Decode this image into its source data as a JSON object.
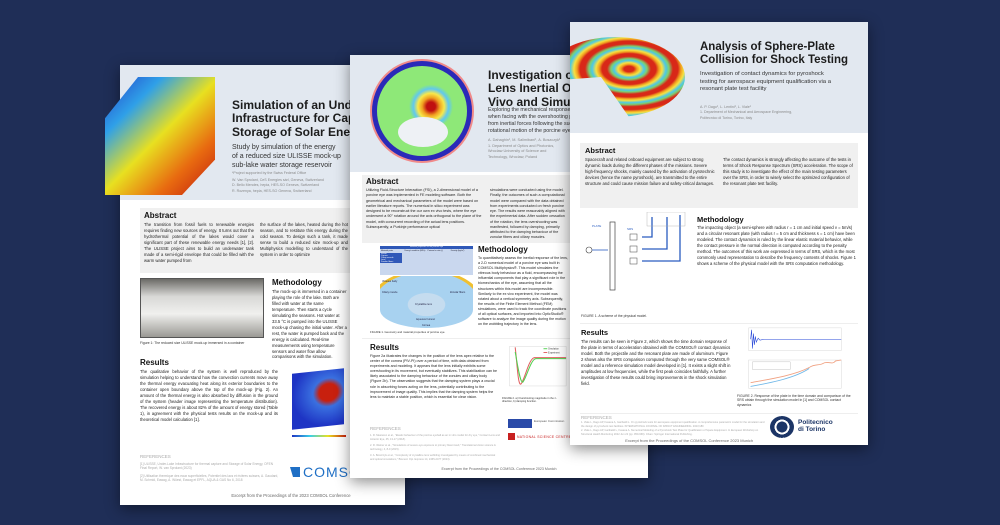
{
  "colors": {
    "background": "#1f2e57",
    "header": "#e2e8f0",
    "abstract_box": "#f0f0f0",
    "comsol_blue": "#1f6fc5",
    "polito_navy": "#1c3566"
  },
  "left_poster": {
    "title_lines": [
      "Simulation of an Underwater",
      "Infrastructure for Capture and",
      "Storage of Solar Energy"
    ],
    "subtitle_lines": [
      "Study by simulation of the energy",
      "of a reduced size ULISSE mock-up",
      "sub-lake water storage reservoir"
    ],
    "note": "*Project supported by the Swiss Federal Office",
    "authors": [
      "W. Van Sprolant, CeS Energies sàrl, Geneva, Switzerland",
      "D. Bello Mendes, hepia, HES-SO Geneva, Switzerland",
      "R. Rozenya, hepia, HES-SO Geneva, Switzerland"
    ],
    "abstract_heading": "Abstract",
    "abstract_col1": "The transition from fossil fuels to renewable energies requires finding new sources of energy. It turns out that the hydrothermal potential of the lakes would cover a significant part of these renewable energy needs [1], [2]. The ULISSE project aims to build an underwater tank made of a semi-rigid envelope that could be filled with the warm water pumped from",
    "abstract_col2": "the surface of the lakes, heated during the hot season, and to restitute this energy during the cold season. To design such a tank, it made sense to build a reduced size mock-up and Multiphysics modelling to understand of the system in order to optimize",
    "methodology_heading": "Methodology",
    "methodology_text": "The mock-up is immersed in a container playing the role of the lake. Both are filled with water at the same temperature. Then starts a cycle simulating the seasons. Hot water at 33.5 °C is pumped into the ULISSE mock-up chasing the initial water. After a rest, the water is pumped back and the energy is calculated. Real-time measurements using temperature sensors and water flow allow comparisons with the simulation.",
    "figure1_caption": "Figure 1: The reduced size ULISSE mock-up immersed in a container",
    "results_heading": "Results",
    "results_text": "The qualitative behavior of the system is well reproduced by the simulation helping to understand how the convection currents move away the thermal energy evacuating heat along its exterior boundaries to the container open boundary above the top of the mock-up (Fig. 2). An amount of the thermal energy is also absorbed by diffusion in the ground of the system (header image representing the temperature distribution). The recovered energy is about 82% of the amount of energy stored (Table 1), in agreement with the physical tests results on the mock-up and its theoretical model calculation [1].",
    "references_heading": "REFERENCES",
    "references": [
      "[1] ULISSE, Under-Lake Infrastructure for thermal capture and Storage of Solar Energy, OFEN Final Report, W. van Sprolant (2023)",
      "[2] Utilisation thermique des eaux superficielles, Potentiel des lacs et rivières suisses, A. Gaudard, M. Schmid, Eawag, A. Wüest, Eawag et EPFL, AQUA & GAS No 6, 2018"
    ],
    "logo_text": "COMSOL",
    "footer": "Excerpt from the Proceedings of the 2023 COMSOL Conference"
  },
  "middle_poster": {
    "title_lines": [
      "Investigation of the",
      "Lens Inertial Overshoot",
      "Vivo and Simulation"
    ],
    "subtitle_lines": [
      "Exploring the mechanical responses of the lens",
      "when facing with the overshooting phenomenon",
      "from inertial forces following the sudden",
      "rotational motion of the porcine eye"
    ],
    "authors": [
      "A. Dahaghin¹, M. Salimibani¹, A. Boszczyk¹",
      "1. Department of Optics and Photonics, Wroclaw University of Science and",
      "Technology, Wroclaw, Poland"
    ],
    "abstract_heading": "Abstract",
    "abstract_col1": "Utilizing Fluid-Structure Interaction (FSI), a 2-dimensional model of a porcine eye was implemented in FE modeling software. Both the geometrical and mechanical parameters of the model were based on earlier literature reports. The numerical in silico experiment was designed to be reconstruct the our own ex vivo tests, where the eye underwent a 90° rotation around the axis orthogonal to the plane of the model, with concurrent recording of the actual lens positions. Subsequently, a Purkinje performance optical",
    "abstract_col2": "simulations were conducted using the model. Finally, the outcomes of such a computational model were compared with the data obtained from experiments conducted on fresh porcine eye. The results were reasonably aligned with the experimental data. After sudden cessation of the rotation, the lens overshooting was manifested, followed by damping, primarily attributed to the damping behaviour of the zonular fibers and ciliary muscles.",
    "methodology_heading": "Methodology",
    "methodology_text": "To quantitatively assess the inertial response of the lens, a 2-D numerical model of a porcine eye was built in COMSOL Multiphysics®. This model simulates the vitreous body behaviour as a fluid, encompassing the influential components that play a significant role in the biomechanics of the eye, assuming that all the structures within this model are incompressible. Similarly to the ex vivo experiment, the model was rotated about a vertical symmetry axis. Subsequently, the results of the Finite Element Method (FEM) simulations, were used to track the coordinate positions of all optical surfaces, and imported into OpticStudio® software to analyze the image quality during the motion on the wobbling trajectory in the lens.",
    "table_title": "Material properties of the porcine eye",
    "table_headers": [
      "Material parts",
      "Young's modulus (MPa)",
      "Poisson's ratio (-)",
      "Density (kg/m³)"
    ],
    "table_rows": [
      [
        "Sclera",
        "",
        "",
        ""
      ],
      [
        "Cornea",
        "",
        "",
        ""
      ],
      [
        "Ciliary muscle",
        "",
        "",
        ""
      ],
      [
        "Lens",
        "",
        "",
        ""
      ],
      [
        "Zonular fibers",
        "",
        "",
        ""
      ]
    ],
    "eye_labels": [
      "Vitreous body",
      "Ciliary muscle",
      "Crystalline lens",
      "Zonular fibers",
      "Aqueous humour",
      "Cornea"
    ],
    "figure1_caption": "FIGURE 1. Geometry and material properties of porcine eye.",
    "results_heading": "Results",
    "results_text": "Figure 2a illustrates the changes in the position of the lens apex relative to the center of the cornea (PIV-PI) over a period of time, with data obtained from experiments and modeling. It appears that the lens initially exhibits some overshooting in its movement, but eventually stabilizes. This stabilization can be likely associated to the damping behaviour of the zonules and ciliary body (Figure 2b). The observation suggests that the damping system plays a crucial role in absorbing forces acting on the lens, potentially contributing to the improvement of image quality. This implies that the damping system helps the lens to maintain a stable position, which is essential for clear vision.",
    "legend": [
      "Simulation",
      "Experiment"
    ],
    "figure2_caption": "FIGURE 2. a) Overshooting magnitude in the z-direction, b) damping function.",
    "references_heading": "REFERENCES",
    "references": [
      "1. R. Meeteren et al., \"Elastic behaviour of the porcine eyeball as an in vitro model for dry eye,\" Contact Lens and Anterior Eye, 45, 13-17 (2018).",
      "2. R. Weiner et al., \"Simulations of severe eye exposure to primary blast insult,\" Translational vision science & technology, 4, 8-9 (2015).",
      "3. A. Boszczyk et al., \"Complexity of crystalline lens wobbling investigated by means of combined mechanical and optical simulations,\" Biomed. Opt. Express 14, 2465-2477 (2023)."
    ],
    "logo_eu": "European Commission",
    "logo_ncn": "NATIONAL SCIENCE CENTRE",
    "footer": "Excerpt from the Proceedings of the COMSOL Conference 2023 Munich"
  },
  "right_poster": {
    "title_lines": [
      "Analysis of Sphere-Plate",
      "Collision for Shock Testing"
    ],
    "subtitle_lines": [
      "Investigation of contact dynamics for pyroshock",
      "testing for aerospace equipment qualification via a",
      "resonant plate test facility"
    ],
    "authors": [
      "A. P. Dago¹, L. Lentini¹, L. Viale¹",
      "1. Department of Mechanical and Aerospace Engineering,",
      "Politecnico di Torino, Torino, Italy"
    ],
    "abstract_heading": "Abstract",
    "abstract_col1": "Spacecraft and related onboard equipment are subject to strong dynamic loads during the different phases of the missions. Severe high-frequency shocks, mainly caused by the activation of pyrotechnic devices (hence the name pyroshock), are transmitted to the entire structure and could cause mission failure and safety-critical damages.",
    "abstract_col2": "The contact dynamics is strongly affecting the outcome of the tests in terms of Shock Response Spectrum (SRS) acceleration. The scope of this study is to investigate the effect of the main testing parameters over the SRS, in order to wisely select the optimized configuration of the resonant plate test facility.",
    "methodology_heading": "Methodology",
    "methodology_text": "The impacting object (a semi-sphere with radius r = 1 cm and initial speed v = 5m/s) and a circular resonant plate (with radius r = 5 cm and thickness s = 1 cm) have been modeled. The contact dynamics is ruled by the linear elastic material behavior, while the contact pressure in the normal direction is computed according to the penalty method. The outcomes of this work are expressed in terms of SRS, which is the most commonly used representation to describe the frequency contents of shocks. Figure 1 shows a scheme of the physical model with the SRS computation methodology.",
    "scheme_labels": [
      "PLATE",
      "SRS"
    ],
    "figure1_caption": "FIGURE 1. A scheme of the physical model.",
    "results_heading": "Results",
    "results_text": "The results can be seen in Figure 2, which shows the time domain response of the plate in terms of acceleration obtained with the COMSOL® contact dynamics model. Both the projectile and the resonant plate are made of aluminum. Figure 2 shows also the SRS comparison computed through the very same COMSOL® model and a reference simulation model developed in [1]. It exists a slight shift in amplitudes at low frequencies, while the first peak coincides faithfully. A further investigation of these results could bring improvements in the shock simulation field.",
    "figure2_caption": "FIGURE 2. Response of the plate in the time domain and comparison of the SRS obtain through the simulation model in [1] and COMSOL contact dynamics",
    "references_heading": "REFERENCES",
    "references": [
      "1. Viale L, Dago AP, Fasana A, Garibaldi L. On pyroshock tests for aerospace equipment qualification. A comprehensive parametric model for the simulation and the design of pyroshock test facilities. INTERNATIONAL JOURNAL OF IMPACT ENGINEERING. 2023;180",
      "2. Viale L, Dago AP, Garibaldi L, Fasana A. Numerical Modeling of a Pyroshock Test Plate for Qualification of Space Equipment. In European Workshop on Structural Health Monitoring 2022 Jun 22 (pp. 959-969). Cham: Springer International Publishing."
    ],
    "logo_text": [
      "Politecnico",
      "di Torino"
    ],
    "footer": "Excerpt from the Proceedings of the COMSOL Conference 2023 Munich"
  }
}
